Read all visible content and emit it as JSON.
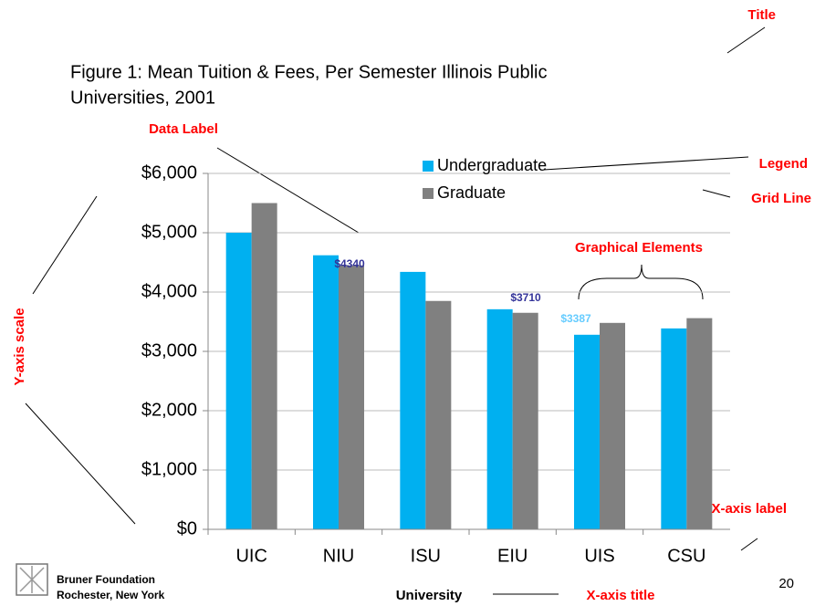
{
  "chart_data": {
    "type": "bar",
    "title": [
      "Figure 1:  Mean Tuition & Fees,  Per Semester Illinois Public",
      "Universities, 2001"
    ],
    "x_label": "University",
    "categories": [
      "UIC",
      "NIU",
      "ISU",
      "EIU",
      "UIS",
      "CSU"
    ],
    "series": [
      {
        "name": "Undergraduate",
        "color": "#00b0f0",
        "values": [
          5000,
          4620,
          4340,
          3710,
          3280,
          3387
        ]
      },
      {
        "name": "Graduate",
        "color": "#808080",
        "values": [
          5500,
          4450,
          3850,
          3650,
          3480,
          3560
        ]
      }
    ],
    "ylim": [
      0,
      6000
    ],
    "yticks": [
      {
        "value": 0,
        "label": "$0"
      },
      {
        "value": 1000,
        "label": "$1,000"
      },
      {
        "value": 2000,
        "label": "$2,000"
      },
      {
        "value": 3000,
        "label": "$3,000"
      },
      {
        "value": 4000,
        "label": "$4,000"
      },
      {
        "value": 5000,
        "label": "$5,000"
      },
      {
        "value": 6000,
        "label": "$6,000"
      }
    ],
    "grid": true,
    "legend": "top-right",
    "data_labels": [
      {
        "text": "$4340",
        "color": "#333399"
      },
      {
        "text": "$3710",
        "color": "#333399"
      },
      {
        "text": "$3387",
        "color": "#66ccff"
      }
    ],
    "annotations": [
      "Title",
      "Data Label",
      "Legend",
      "Grid Line",
      "Graphical Elements",
      "Y-axis scale",
      "X-axis label",
      "X-axis title"
    ]
  },
  "footer": {
    "org": [
      "Bruner Foundation",
      "Rochester, New York"
    ],
    "page": "20"
  }
}
